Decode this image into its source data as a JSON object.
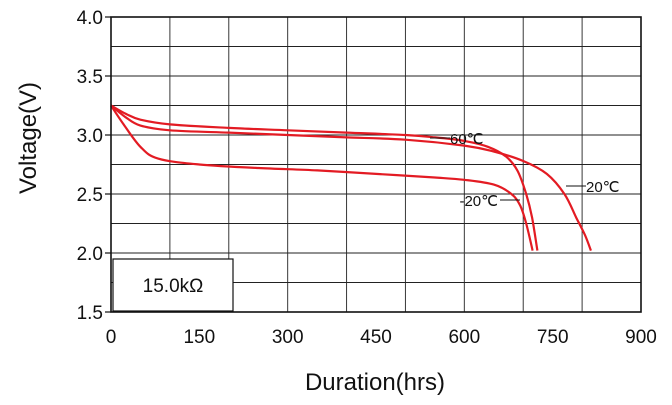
{
  "chart_data": {
    "type": "line",
    "xlabel": "Duration(hrs)",
    "ylabel": "Voltage(V)",
    "xlim": [
      0,
      900
    ],
    "ylim": [
      1.5,
      4.0
    ],
    "xticks": [
      "0",
      "150",
      "300",
      "450",
      "600",
      "750",
      "900"
    ],
    "yticks": [
      "1.5",
      "2.0",
      "2.5",
      "3.0",
      "3.5",
      "4.0"
    ],
    "grid": true,
    "line_color": "#e31b23",
    "annotation_box": "15.0kΩ",
    "series": [
      {
        "name": "60℃",
        "points": [
          [
            0,
            3.25
          ],
          [
            25,
            3.18
          ],
          [
            50,
            3.13
          ],
          [
            100,
            3.09
          ],
          [
            200,
            3.06
          ],
          [
            300,
            3.04
          ],
          [
            400,
            3.02
          ],
          [
            500,
            3.0
          ],
          [
            550,
            2.98
          ],
          [
            600,
            2.95
          ],
          [
            640,
            2.9
          ],
          [
            670,
            2.82
          ],
          [
            690,
            2.7
          ],
          [
            705,
            2.5
          ],
          [
            715,
            2.3
          ],
          [
            724,
            2.02
          ]
        ]
      },
      {
        "name": "20℃",
        "points": [
          [
            0,
            3.25
          ],
          [
            25,
            3.15
          ],
          [
            50,
            3.08
          ],
          [
            100,
            3.04
          ],
          [
            200,
            3.02
          ],
          [
            300,
            3.0
          ],
          [
            400,
            2.98
          ],
          [
            500,
            2.96
          ],
          [
            600,
            2.91
          ],
          [
            650,
            2.86
          ],
          [
            700,
            2.78
          ],
          [
            740,
            2.67
          ],
          [
            770,
            2.5
          ],
          [
            790,
            2.3
          ],
          [
            805,
            2.15
          ],
          [
            815,
            2.02
          ]
        ]
      },
      {
        "name": "-20℃",
        "points": [
          [
            0,
            3.25
          ],
          [
            20,
            3.1
          ],
          [
            50,
            2.9
          ],
          [
            80,
            2.8
          ],
          [
            150,
            2.75
          ],
          [
            250,
            2.72
          ],
          [
            350,
            2.7
          ],
          [
            450,
            2.67
          ],
          [
            550,
            2.64
          ],
          [
            600,
            2.62
          ],
          [
            650,
            2.58
          ],
          [
            680,
            2.5
          ],
          [
            695,
            2.4
          ],
          [
            705,
            2.25
          ],
          [
            716,
            2.02
          ]
        ]
      }
    ]
  }
}
